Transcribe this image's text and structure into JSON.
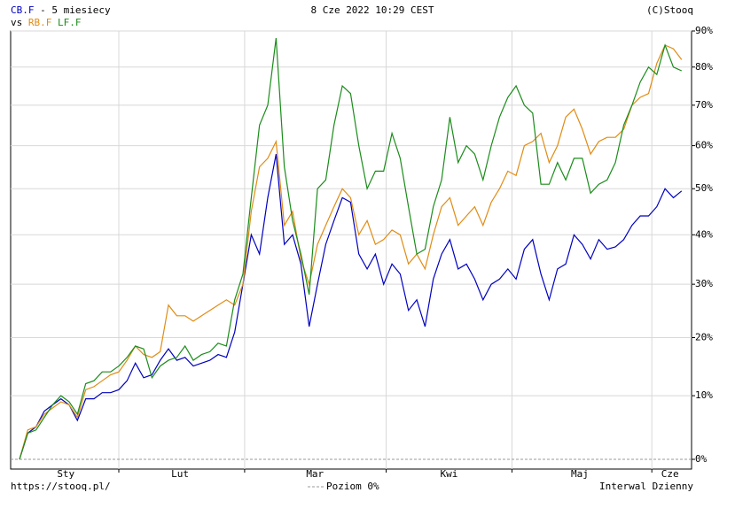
{
  "chart_data": {
    "type": "line",
    "period": "- 5 miesiecy",
    "compare_label": "vs",
    "timestamp": "8 Cze 2022 10:29 CEST",
    "copyright": "(C)Stooq",
    "source": "https://stooq.pl/",
    "zero_line_label": "Poziom 0%",
    "interval": "Interwal Dzienny",
    "log_scale": true,
    "grid": true,
    "xlim": [
      -1.07,
      81.2
    ],
    "x_grid": [
      12,
      27.2,
      44.3,
      59.5,
      76.4
    ],
    "xticks": [
      {
        "value": 5.6,
        "label": "Sty"
      },
      {
        "value": 19.4,
        "label": "Lut"
      },
      {
        "value": 35.7,
        "label": "Mar"
      },
      {
        "value": 51.9,
        "label": "Kwi"
      },
      {
        "value": 67.7,
        "label": "Maj"
      },
      {
        "value": 78.6,
        "label": "Cze"
      }
    ],
    "ylim": [
      -1.45,
      90
    ],
    "yticks": [
      {
        "value": 0,
        "label": "0%"
      },
      {
        "value": 10,
        "label": "10%"
      },
      {
        "value": 20,
        "label": "20%"
      },
      {
        "value": 30,
        "label": "30%"
      },
      {
        "value": 40,
        "label": "40%"
      },
      {
        "value": 50,
        "label": "50%"
      },
      {
        "value": 60,
        "label": "60%"
      },
      {
        "value": 70,
        "label": "70%"
      },
      {
        "value": 80,
        "label": "80%"
      },
      {
        "value": 90,
        "label": "90%"
      }
    ],
    "x": [
      0,
      1,
      2,
      3,
      4,
      5,
      6,
      7,
      8,
      9,
      10,
      11,
      12,
      13,
      14,
      15,
      16,
      17,
      18,
      19,
      20,
      21,
      22,
      23,
      24,
      25,
      26,
      27,
      28,
      29,
      30,
      31,
      32,
      33,
      34,
      35,
      36,
      37,
      38,
      39,
      40,
      41,
      42,
      43,
      44,
      45,
      46,
      47,
      48,
      49,
      50,
      51,
      52,
      53,
      54,
      55,
      56,
      57,
      58,
      59,
      60,
      61,
      62,
      63,
      64,
      65,
      66,
      67,
      68,
      69,
      70,
      71,
      72,
      73,
      74,
      75,
      76,
      77,
      78,
      79,
      80
    ],
    "series": [
      {
        "name": "CB.F",
        "color": "#0000c0",
        "values": [
          0,
          4,
          5,
          7.5,
          8.5,
          9.5,
          8.5,
          6,
          9.5,
          9.5,
          10.5,
          10.5,
          11,
          12.5,
          15.5,
          13,
          13.5,
          16,
          18,
          16,
          16.5,
          15,
          15.5,
          16,
          17,
          16.5,
          21,
          30,
          40,
          36,
          48,
          58,
          38,
          40,
          34,
          22,
          30,
          38,
          43,
          48,
          47,
          36,
          33,
          36,
          30,
          34,
          32,
          25,
          27,
          22,
          31,
          36,
          39,
          33,
          34,
          31,
          27,
          30,
          31,
          33,
          31,
          37,
          39,
          32,
          27,
          33,
          34,
          40,
          38,
          35,
          39,
          37,
          37.5,
          39,
          42,
          44,
          44,
          46,
          50,
          48,
          49.5
        ]
      },
      {
        "name": "RB.F",
        "color": "#e08c14",
        "values": [
          0,
          4.5,
          5,
          7,
          8,
          9,
          8.5,
          6.5,
          11,
          11.5,
          12.5,
          13.5,
          14,
          16,
          18.5,
          17,
          16.5,
          17.5,
          26,
          24,
          24,
          23,
          24,
          25,
          26,
          27,
          26,
          30,
          45,
          55,
          57,
          61,
          42,
          45,
          35,
          30,
          38,
          42,
          46,
          50,
          48,
          40,
          43,
          38,
          39,
          41,
          40,
          34,
          36,
          33,
          40,
          46,
          48,
          42,
          44,
          46,
          42,
          47,
          50,
          54,
          53,
          60,
          61,
          63,
          56,
          60,
          67,
          69,
          64,
          58,
          61,
          62,
          62,
          64,
          70,
          72,
          73,
          81,
          86,
          85,
          82
        ]
      },
      {
        "name": "LF.F",
        "color": "#1a8c1a",
        "values": [
          0,
          4,
          4.5,
          6.5,
          8.5,
          10,
          9,
          7,
          12,
          12.5,
          14,
          14,
          15,
          16.5,
          18.5,
          18,
          13,
          15,
          16,
          16.5,
          18.5,
          16,
          17,
          17.5,
          19,
          18.5,
          27,
          32,
          48,
          65,
          70,
          88,
          55,
          43,
          36,
          28,
          50,
          52,
          65,
          75,
          73,
          60,
          50,
          54,
          54,
          63,
          57,
          46,
          36,
          37,
          46,
          52,
          67,
          56,
          60,
          58,
          52,
          60,
          67,
          72,
          75,
          70,
          68,
          51,
          51,
          56,
          52,
          57,
          57,
          49,
          51,
          52,
          56,
          65,
          70,
          76,
          80,
          78,
          86,
          80,
          79
        ]
      }
    ]
  }
}
